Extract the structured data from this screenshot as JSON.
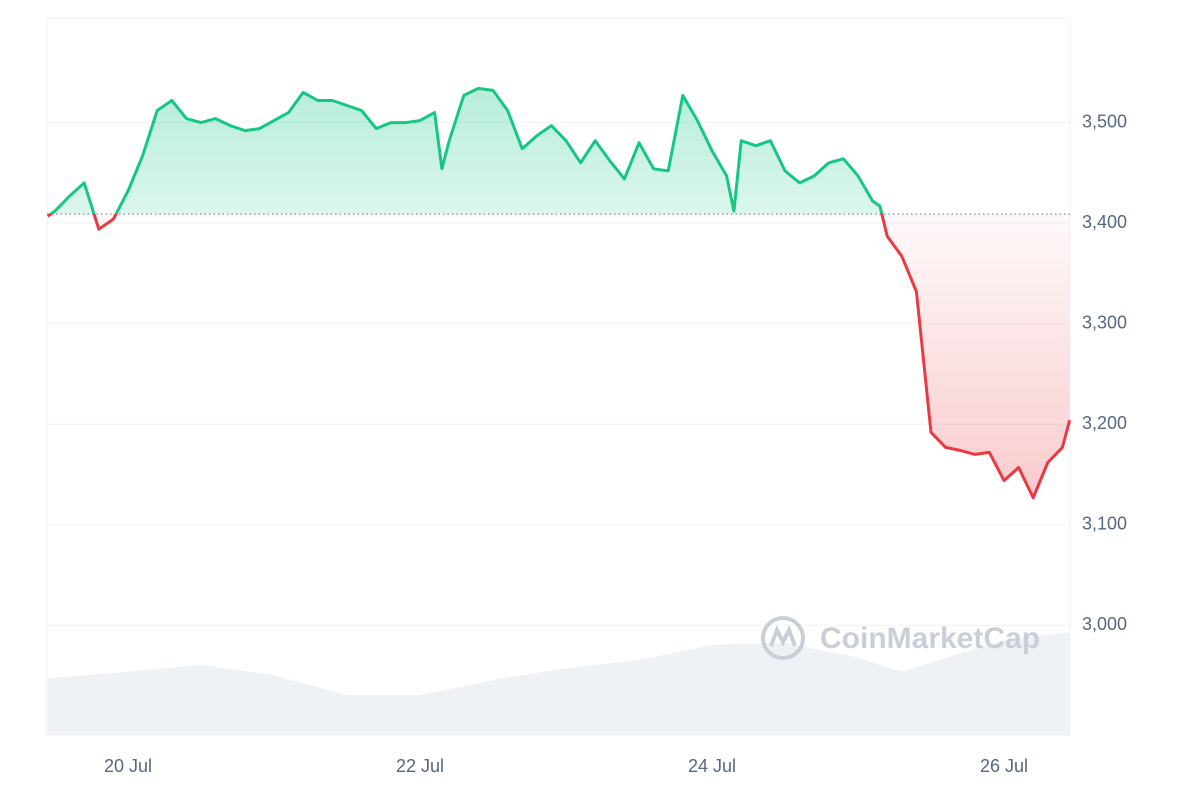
{
  "chart_data": {
    "type": "line",
    "x": [
      19.45,
      19.5,
      19.6,
      19.7,
      19.8,
      19.9,
      20.0,
      20.1,
      20.2,
      20.3,
      20.4,
      20.5,
      20.6,
      20.7,
      20.8,
      20.9,
      21.0,
      21.1,
      21.2,
      21.3,
      21.4,
      21.5,
      21.6,
      21.7,
      21.8,
      21.9,
      22.0,
      22.1,
      22.15,
      22.2,
      22.3,
      22.4,
      22.5,
      22.6,
      22.7,
      22.8,
      22.9,
      23.0,
      23.1,
      23.2,
      23.3,
      23.4,
      23.5,
      23.6,
      23.7,
      23.8,
      23.9,
      24.0,
      24.1,
      24.15,
      24.2,
      24.3,
      24.4,
      24.5,
      24.6,
      24.7,
      24.8,
      24.9,
      25.0,
      25.1,
      25.15,
      25.2,
      25.3,
      25.4,
      25.5,
      25.6,
      25.7,
      25.8,
      25.9,
      26.0,
      26.1,
      26.2,
      26.3,
      26.4,
      26.45
    ],
    "values": [
      3407,
      3412,
      3427,
      3440,
      3394,
      3404,
      3432,
      3467,
      3512,
      3522,
      3504,
      3500,
      3504,
      3497,
      3492,
      3494,
      3502,
      3510,
      3530,
      3522,
      3522,
      3517,
      3512,
      3494,
      3500,
      3500,
      3502,
      3510,
      3454,
      3482,
      3527,
      3534,
      3532,
      3512,
      3474,
      3487,
      3497,
      3482,
      3460,
      3482,
      3462,
      3444,
      3480,
      3454,
      3452,
      3527,
      3502,
      3472,
      3447,
      3412,
      3482,
      3477,
      3482,
      3452,
      3440,
      3447,
      3460,
      3464,
      3447,
      3422,
      3417,
      3387,
      3367,
      3332,
      3192,
      3177,
      3174,
      3170,
      3172,
      3144,
      3157,
      3127,
      3162,
      3177,
      3204
    ],
    "baseline": 3409,
    "colors": {
      "above": "#16c784",
      "below": "#ea3943"
    },
    "xlim": [
      19.445,
      26.452
    ],
    "ylim": [
      2891,
      3604
    ],
    "xticks": [
      {
        "value": 20,
        "label": "20 Jul"
      },
      {
        "value": 22,
        "label": "22 Jul"
      },
      {
        "value": 24,
        "label": "24 Jul"
      },
      {
        "value": 26,
        "label": "26 Jul"
      }
    ],
    "yticks": [
      {
        "value": 3000,
        "label": "3,000"
      },
      {
        "value": 3100,
        "label": "3,100"
      },
      {
        "value": 3200,
        "label": "3,200"
      },
      {
        "value": 3300,
        "label": "3,300"
      },
      {
        "value": 3400,
        "label": "3,400"
      },
      {
        "value": 3500,
        "label": "3,500"
      }
    ],
    "grid": true,
    "watermark": "CoinMarketCap",
    "volume": {
      "x": [
        19.45,
        19.5,
        20.0,
        20.5,
        21.0,
        21.5,
        22.0,
        22.5,
        23.0,
        23.5,
        24.0,
        24.5,
        25.0,
        25.3,
        25.5,
        26.0,
        26.45
      ],
      "values": [
        49,
        49,
        54,
        60,
        51,
        34,
        34,
        47,
        57,
        64,
        77,
        79,
        66,
        54,
        62,
        81,
        88
      ],
      "ylim": [
        0,
        100
      ],
      "color": "#eff2f5"
    }
  }
}
